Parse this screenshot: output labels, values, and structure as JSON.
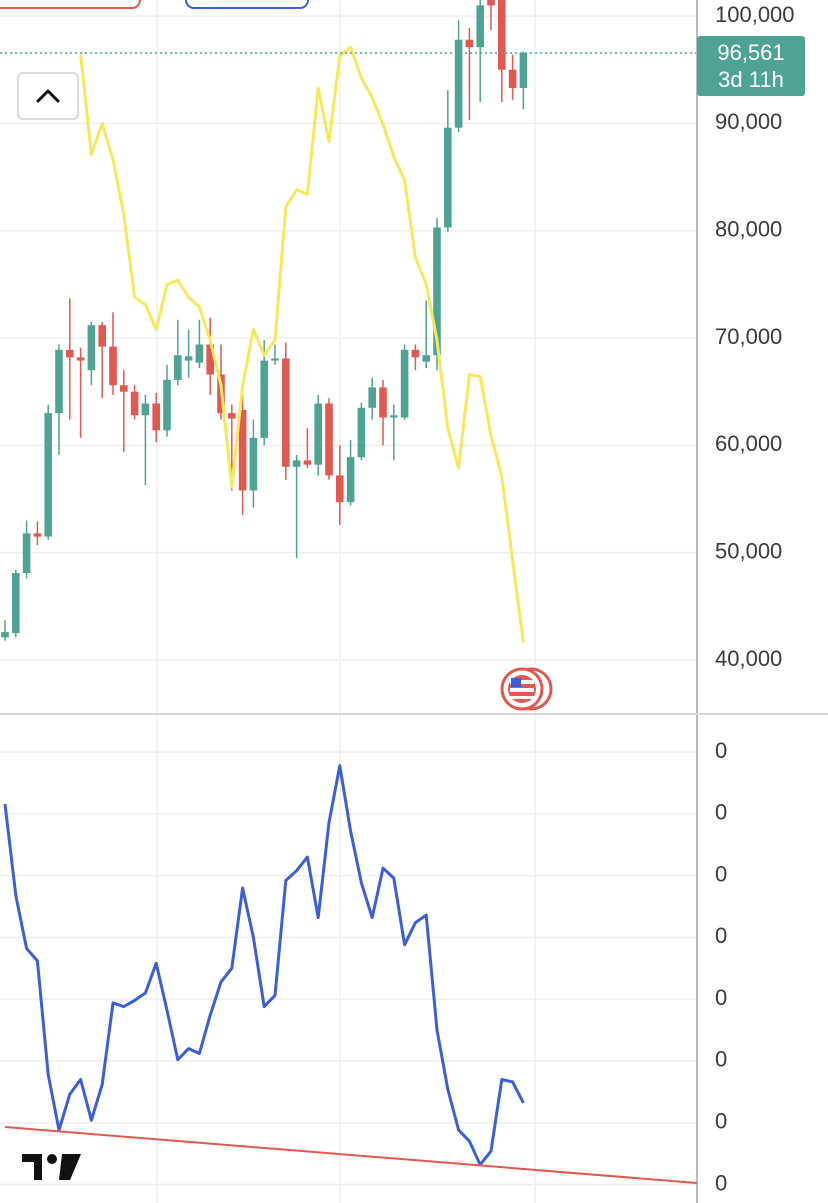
{
  "chart_data": [
    {
      "type": "candlestick",
      "categories": [
        null,
        null,
        null,
        null,
        null,
        null,
        null,
        null,
        null,
        null,
        null,
        null,
        null,
        null,
        null,
        null,
        null,
        null,
        null,
        null,
        null,
        null,
        null,
        null,
        null,
        null,
        null,
        null,
        null,
        null,
        null,
        null,
        null,
        null,
        null,
        null,
        null,
        null,
        null,
        null,
        null,
        null,
        null,
        null,
        null,
        null,
        null,
        null,
        null
      ],
      "open": [
        42100,
        42500,
        48100,
        51800,
        51500,
        63000,
        68900,
        68200,
        67000,
        71200,
        69200,
        65600,
        65000,
        62800,
        63900,
        61400,
        66100,
        67900,
        67700,
        69400,
        66600,
        63000,
        63300,
        55800,
        60700,
        67900,
        68100,
        58000,
        58600,
        58200,
        63900,
        57200,
        54700,
        58900,
        63500,
        65400,
        62600,
        62600,
        68900,
        67800,
        68400,
        80300,
        89600,
        97800,
        97100,
        102400,
        101500,
        95000,
        93300
      ],
      "high": [
        43700,
        48400,
        53000,
        52900,
        63800,
        69400,
        73700,
        69100,
        71500,
        71500,
        72400,
        67000,
        65600,
        64700,
        64900,
        67500,
        71700,
        70800,
        71700,
        71900,
        69400,
        63800,
        64700,
        62400,
        69800,
        69400,
        69600,
        59100,
        61600,
        64700,
        64400,
        60000,
        60500,
        64000,
        66300,
        66100,
        63800,
        69400,
        69400,
        73500,
        81200,
        93100,
        99600,
        98900,
        101500,
        103400,
        103400,
        96400,
        96700
      ],
      "low": [
        41800,
        42100,
        47600,
        50700,
        51200,
        59100,
        62400,
        60700,
        65600,
        64400,
        64700,
        59400,
        62400,
        56300,
        60300,
        60800,
        65600,
        66300,
        67200,
        64700,
        62400,
        55800,
        53500,
        54200,
        60000,
        67500,
        56800,
        49500,
        57900,
        57200,
        56800,
        52600,
        54400,
        58600,
        62400,
        60000,
        58600,
        62400,
        67000,
        67200,
        67000,
        79900,
        89200,
        90300,
        92000,
        98700,
        92000,
        92200,
        91300
      ],
      "close": [
        42600,
        48100,
        51800,
        51500,
        63000,
        68900,
        68200,
        67900,
        71200,
        69200,
        65600,
        65000,
        62800,
        63900,
        61400,
        66100,
        68400,
        68300,
        69400,
        66600,
        63000,
        62500,
        55800,
        60700,
        67900,
        68100,
        58000,
        58600,
        58200,
        63900,
        57200,
        54700,
        58900,
        63500,
        65400,
        62600,
        62800,
        68900,
        68200,
        68400,
        80300,
        89600,
        97800,
        97100,
        101000,
        101000,
        95000,
        93300,
        96561
      ],
      "up_color": "#4fa394",
      "down_color": "#e0584f",
      "overlay": {
        "color": "#f7e85a",
        "values": [
          null,
          null,
          null,
          null,
          null,
          null,
          null,
          96400,
          87100,
          90000,
          86600,
          81500,
          73800,
          73100,
          70800,
          75000,
          75400,
          73800,
          72900,
          69800,
          65600,
          56100,
          65600,
          70800,
          68400,
          69800,
          82200,
          83800,
          83400,
          93300,
          88300,
          96300,
          97100,
          94200,
          92400,
          89900,
          86900,
          84700,
          77500,
          75000,
          69800,
          61600,
          57900,
          66600,
          66400,
          60900,
          57100,
          49300,
          41600
        ]
      },
      "ylim": [
        35060,
        101500
      ],
      "yticks": [
        {
          "value": 40000,
          "label": "40,000"
        },
        {
          "value": 50000,
          "label": "50,000"
        },
        {
          "value": 60000,
          "label": "60,000"
        },
        {
          "value": 70000,
          "label": "70,000"
        },
        {
          "value": 80000,
          "label": "80,000"
        },
        {
          "value": 90000,
          "label": "90,000"
        },
        {
          "value": 100000,
          "label": "100,000"
        }
      ],
      "grid": true,
      "last_price": {
        "value": 96561,
        "label": "96,561"
      },
      "countdown": "3d 11h"
    },
    {
      "type": "line",
      "categories": [
        null,
        null,
        null,
        null,
        null,
        null,
        null,
        null,
        null,
        null,
        null,
        null,
        null,
        null,
        null,
        null,
        null,
        null,
        null,
        null,
        null,
        null,
        null,
        null,
        null,
        null,
        null,
        null,
        null,
        null,
        null,
        null,
        null,
        null,
        null,
        null,
        null,
        null,
        null,
        null,
        null,
        null,
        null,
        null,
        null,
        null,
        null,
        null,
        null
      ],
      "series": [
        {
          "color": "#3a5fd9",
          "values": [
            0.308,
            0.234,
            0.191,
            0.181,
            0.089,
            0.044,
            0.073,
            0.085,
            0.052,
            0.081,
            0.147,
            0.144,
            0.149,
            0.155,
            0.179,
            0.141,
            0.101,
            0.11,
            0.106,
            0.137,
            0.164,
            0.175,
            0.24,
            0.2,
            0.144,
            0.153,
            0.246,
            0.254,
            0.265,
            0.216,
            0.293,
            0.339,
            0.286,
            0.244,
            0.216,
            0.256,
            0.248,
            0.194,
            0.212,
            0.218,
            0.125,
            0.077,
            0.044,
            0.035,
            0.016,
            0.027,
            0.085,
            0.083,
            0.066
          ]
        }
      ],
      "ylim": [
        -0.015,
        0.38
      ],
      "yticks": [
        {
          "value": 0,
          "label": "0"
        },
        {
          "value": 0.05,
          "label": "0"
        },
        {
          "value": 0.1,
          "label": "0"
        },
        {
          "value": 0.15,
          "label": "0"
        },
        {
          "value": 0.2,
          "label": "0"
        },
        {
          "value": 0.25,
          "label": "0"
        },
        {
          "value": 0.3,
          "label": "0"
        },
        {
          "value": 0.35,
          "label": "0"
        }
      ],
      "grid": true
    }
  ]
}
